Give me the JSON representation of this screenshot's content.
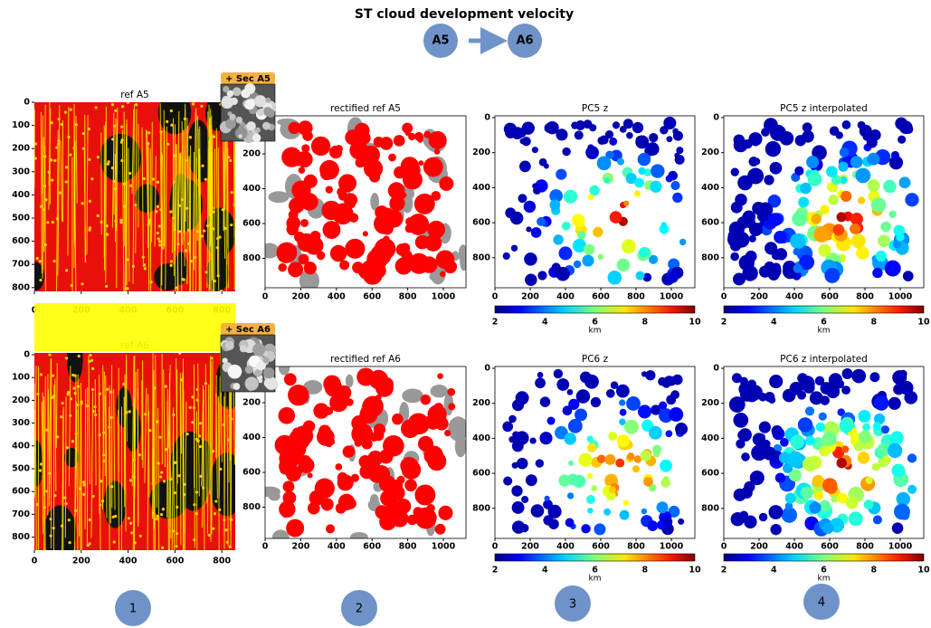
{
  "title": "ST cloud development velocity",
  "flow": {
    "from": "A5",
    "to": "A6"
  },
  "badges": [
    "+ Sec A5",
    "+ Sec A6"
  ],
  "panels": [
    {
      "title": "ref A5",
      "yticks": [
        0,
        100,
        200,
        300,
        400,
        500,
        600,
        700,
        800
      ],
      "xticks": [
        0,
        200,
        400,
        600,
        800
      ]
    },
    {
      "title": "ref A6",
      "yticks": [
        0,
        100,
        200,
        300,
        400,
        500,
        600,
        700,
        800
      ],
      "xticks": [
        0,
        200,
        400,
        600,
        800
      ]
    },
    {
      "title": "rectified ref A5",
      "yticks": [
        200,
        400,
        600,
        800
      ],
      "xticks": [
        0,
        200,
        400,
        600,
        800,
        1000
      ]
    },
    {
      "title": "rectified ref A6",
      "yticks": [
        200,
        400,
        600,
        800
      ],
      "xticks": [
        0,
        200,
        400,
        600,
        800,
        1000
      ]
    },
    {
      "title": "PC5 z",
      "yticks": [
        0,
        200,
        400,
        600,
        800
      ],
      "xticks": [
        0,
        200,
        400,
        600,
        800,
        1000
      ],
      "colorbar": {
        "ticks": [
          2,
          4,
          6,
          8,
          10
        ],
        "label": "km"
      }
    },
    {
      "title": "PC6 z",
      "yticks": [
        0,
        200,
        400,
        600,
        800
      ],
      "xticks": [
        0,
        200,
        400,
        600,
        800,
        1000
      ],
      "colorbar": {
        "ticks": [
          2,
          4,
          6,
          8,
          10
        ],
        "label": "km"
      }
    },
    {
      "title": "PC5 z interpolated",
      "yticks": [
        0,
        200,
        400,
        600,
        800
      ],
      "xticks": [
        0,
        200,
        400,
        600,
        800,
        1000
      ],
      "colorbar": {
        "ticks": [
          2,
          4,
          6,
          8,
          10
        ],
        "label": "km"
      }
    },
    {
      "title": "PC6 z interpolated",
      "yticks": [
        0,
        200,
        400,
        600,
        800
      ],
      "xticks": [
        0,
        200,
        400,
        600,
        800,
        1000
      ],
      "colorbar": {
        "ticks": [
          2,
          4,
          6,
          8,
          10
        ],
        "label": "km"
      }
    }
  ],
  "steps": [
    "1",
    "2",
    "3",
    "4"
  ]
}
